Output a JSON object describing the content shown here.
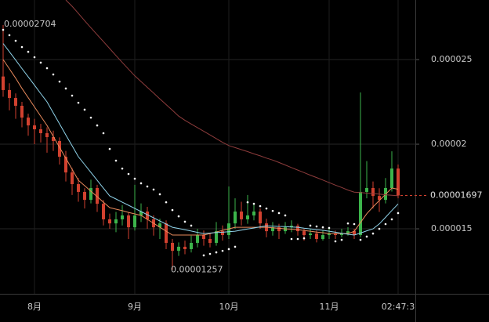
{
  "chart_data": {
    "type": "candlestick",
    "categories": [
      null,
      null,
      null,
      null,
      null,
      "8月",
      null,
      null,
      null,
      null,
      null,
      null,
      null,
      null,
      null,
      null,
      null,
      null,
      null,
      null,
      null,
      "9月",
      null,
      null,
      null,
      null,
      null,
      null,
      null,
      null,
      null,
      null,
      null,
      null,
      null,
      null,
      "10月",
      null,
      null,
      null,
      null,
      null,
      null,
      null,
      null,
      null,
      null,
      null,
      null,
      null,
      null,
      null,
      "11月",
      null,
      null,
      null,
      null,
      null,
      null,
      null,
      null,
      null,
      null,
      "02:47:3"
    ],
    "open": [
      2.4e-05,
      2.32e-05,
      2.273e-05,
      2.227e-05,
      2.157e-05,
      2.111e-05,
      2.088e-05,
      2.065e-05,
      2.042e-05,
      2.019e-05,
      1.926e-05,
      1.833e-05,
      1.764e-05,
      1.718e-05,
      1.671e-05,
      1.741e-05,
      1.648e-05,
      1.556e-05,
      1.532e-05,
      1.556e-05,
      1.579e-05,
      1.509e-05,
      1.579e-05,
      1.602e-05,
      1.556e-05,
      1.509e-05,
      1.532e-05,
      1.417e-05,
      1.37e-05,
      1.394e-05,
      1.38e-05,
      1.417e-05,
      1.463e-05,
      1.44e-05,
      1.417e-05,
      1.486e-05,
      1.463e-05,
      1.532e-05,
      1.602e-05,
      1.556e-05,
      1.579e-05,
      1.602e-05,
      1.532e-05,
      1.486e-05,
      1.509e-05,
      1.486e-05,
      1.509e-05,
      1.518e-05,
      1.486e-05,
      1.463e-05,
      1.472e-05,
      1.44e-05,
      1.463e-05,
      1.472e-05,
      1.463e-05,
      1.472e-05,
      1.486e-05,
      1.463e-05,
      1.718e-05,
      1.741e-05,
      1.694e-05,
      1.671e-05,
      1.741e-05,
      1.856e-05
    ],
    "high": [
      2.704e-05,
      2.36e-05,
      2.3e-05,
      2.25e-05,
      2.18e-05,
      2.15e-05,
      2.12e-05,
      2.1e-05,
      2.08e-05,
      2.04e-05,
      1.96e-05,
      1.86e-05,
      1.8e-05,
      1.74e-05,
      1.79e-05,
      1.76e-05,
      1.67e-05,
      1.59e-05,
      1.6e-05,
      1.64e-05,
      1.6e-05,
      1.76e-05,
      1.65e-05,
      1.63e-05,
      1.58e-05,
      1.56e-05,
      1.55e-05,
      1.44e-05,
      1.42e-05,
      1.43e-05,
      1.46e-05,
      1.5e-05,
      1.49e-05,
      1.47e-05,
      1.54e-05,
      1.52e-05,
      1.75e-05,
      1.68e-05,
      1.66e-05,
      1.7e-05,
      1.65e-05,
      1.62e-05,
      1.56e-05,
      1.54e-05,
      1.53e-05,
      1.54e-05,
      1.55e-05,
      1.53e-05,
      1.5e-05,
      1.5e-05,
      1.49e-05,
      1.49e-05,
      1.5e-05,
      1.49e-05,
      1.5e-05,
      1.51e-05,
      1.5e-05,
      2.306e-05,
      1.9e-05,
      1.78e-05,
      1.74e-05,
      1.8e-05,
      1.958e-05,
      1.88e-05
    ],
    "low": [
      2.28e-05,
      2.2e-05,
      2.15e-05,
      2.1e-05,
      2.05e-05,
      2e-05,
      2.01e-05,
      1.95e-05,
      1.96e-05,
      1.88e-05,
      1.78e-05,
      1.7e-05,
      1.66e-05,
      1.62e-05,
      1.65e-05,
      1.6e-05,
      1.52e-05,
      1.5e-05,
      1.48e-05,
      1.52e-05,
      1.44e-05,
      1.49e-05,
      1.54e-05,
      1.5e-05,
      1.46e-05,
      1.44e-05,
      1.38e-05,
      1.257e-05,
      1.34e-05,
      1.35e-05,
      1.36e-05,
      1.39e-05,
      1.4e-05,
      1.39e-05,
      1.4e-05,
      1.43e-05,
      1.44e-05,
      1.5e-05,
      1.52e-05,
      1.53e-05,
      1.55e-05,
      1.5e-05,
      1.45e-05,
      1.46e-05,
      1.44e-05,
      1.47e-05,
      1.48e-05,
      1.46e-05,
      1.43e-05,
      1.44e-05,
      1.42e-05,
      1.43e-05,
      1.44e-05,
      1.44e-05,
      1.45e-05,
      1.46e-05,
      1.44e-05,
      1.45e-05,
      1.68e-05,
      1.62e-05,
      1.6e-05,
      1.65e-05,
      1.72e-05,
      1.68e-05
    ],
    "close": [
      2.32e-05,
      2.273e-05,
      2.227e-05,
      2.157e-05,
      2.111e-05,
      2.088e-05,
      2.065e-05,
      2.042e-05,
      2.019e-05,
      1.926e-05,
      1.833e-05,
      1.764e-05,
      1.718e-05,
      1.671e-05,
      1.741e-05,
      1.648e-05,
      1.556e-05,
      1.532e-05,
      1.556e-05,
      1.579e-05,
      1.509e-05,
      1.579e-05,
      1.602e-05,
      1.556e-05,
      1.509e-05,
      1.532e-05,
      1.417e-05,
      1.37e-05,
      1.394e-05,
      1.38e-05,
      1.417e-05,
      1.463e-05,
      1.44e-05,
      1.417e-05,
      1.486e-05,
      1.463e-05,
      1.532e-05,
      1.602e-05,
      1.556e-05,
      1.579e-05,
      1.602e-05,
      1.532e-05,
      1.486e-05,
      1.509e-05,
      1.486e-05,
      1.509e-05,
      1.518e-05,
      1.486e-05,
      1.463e-05,
      1.472e-05,
      1.44e-05,
      1.463e-05,
      1.472e-05,
      1.463e-05,
      1.472e-05,
      1.486e-05,
      1.463e-05,
      1.718e-05,
      1.741e-05,
      1.694e-05,
      1.671e-05,
      1.741e-05,
      1.856e-05,
      1.697e-05
    ],
    "up_color": "#3cb44b",
    "down_color": "#d2412f",
    "lines": [
      {
        "style": "line",
        "color": "#e98a5c",
        "values": [
          2.5e-05,
          2.445e-05,
          2.39e-05,
          2.33e-05,
          2.275e-05,
          2.22e-05,
          2.165e-05,
          2.111e-05,
          2.046e-05,
          1.981e-05,
          1.917e-05,
          1.852e-05,
          1.787e-05,
          1.755e-05,
          1.722e-05,
          1.69e-05,
          1.657e-05,
          1.625e-05,
          1.616e-05,
          1.607e-05,
          1.597e-05,
          1.588e-05,
          1.579e-05,
          1.556e-05,
          1.533e-05,
          1.509e-05,
          1.486e-05,
          1.463e-05,
          1.463e-05,
          1.463e-05,
          1.463e-05,
          1.463e-05,
          1.463e-05,
          1.472e-05,
          1.481e-05,
          1.491e-05,
          1.5e-05,
          1.509e-05,
          1.509e-05,
          1.509e-05,
          1.509e-05,
          1.509e-05,
          1.509e-05,
          1.506e-05,
          1.503e-05,
          1.5e-05,
          1.498e-05,
          1.495e-05,
          1.49e-05,
          1.486e-05,
          1.481e-05,
          1.477e-05,
          1.472e-05,
          1.472e-05,
          1.472e-05,
          1.472e-05,
          1.485e-05,
          1.537e-05,
          1.589e-05,
          1.63e-05,
          1.667e-05,
          1.704e-05,
          1.741e-05,
          1.734e-05
        ]
      },
      {
        "style": "line",
        "color": "#8fd3ea",
        "values": [
          2.595e-05,
          2.546e-05,
          2.497e-05,
          2.447e-05,
          2.398e-05,
          2.349e-05,
          2.299e-05,
          2.25e-05,
          2.185e-05,
          2.12e-05,
          2.055e-05,
          1.991e-05,
          1.926e-05,
          1.88e-05,
          1.833e-05,
          1.787e-05,
          1.74e-05,
          1.694e-05,
          1.676e-05,
          1.657e-05,
          1.639e-05,
          1.62e-05,
          1.602e-05,
          1.583e-05,
          1.565e-05,
          1.546e-05,
          1.528e-05,
          1.509e-05,
          1.502e-05,
          1.494e-05,
          1.487e-05,
          1.479e-05,
          1.472e-05,
          1.475e-05,
          1.478e-05,
          1.48e-05,
          1.483e-05,
          1.486e-05,
          1.492e-05,
          1.499e-05,
          1.505e-05,
          1.512e-05,
          1.518e-05,
          1.516e-05,
          1.514e-05,
          1.513e-05,
          1.511e-05,
          1.509e-05,
          1.504e-05,
          1.5e-05,
          1.495e-05,
          1.491e-05,
          1.486e-05,
          1.48e-05,
          1.474e-05,
          1.468e-05,
          1.463e-05,
          1.475e-05,
          1.488e-05,
          1.5e-05,
          1.529e-05,
          1.568e-05,
          1.608e-05,
          1.647e-05
        ]
      },
      {
        "style": "line",
        "color": "#8e3c3c",
        "values": [
          null,
          null,
          null,
          null,
          null,
          null,
          null,
          null,
          null,
          null,
          2.852e-05,
          2.815e-05,
          2.773e-05,
          2.73e-05,
          2.688e-05,
          2.647e-05,
          2.606e-05,
          2.565e-05,
          2.524e-05,
          2.483e-05,
          2.443e-05,
          2.404e-05,
          2.37e-05,
          2.336e-05,
          2.302e-05,
          2.268e-05,
          2.234e-05,
          2.2e-05,
          2.166e-05,
          2.141e-05,
          2.119e-05,
          2.098e-05,
          2.076e-05,
          2.055e-05,
          2.033e-05,
          2.011e-05,
          1.992e-05,
          1.98e-05,
          1.968e-05,
          1.956e-05,
          1.943e-05,
          1.931e-05,
          1.918e-05,
          1.906e-05,
          1.892e-05,
          1.877e-05,
          1.862e-05,
          1.847e-05,
          1.832e-05,
          1.817e-05,
          1.803e-05,
          1.788e-05,
          1.773e-05,
          1.758e-05,
          1.744e-05,
          1.729e-05,
          1.717e-05,
          1.714e-05,
          1.711e-05,
          1.708e-05,
          1.705e-05,
          1.701e-05,
          1.698e-05,
          1.695e-05
        ]
      },
      {
        "style": "dots",
        "color": "#ffffff",
        "values": [
          2.676e-05,
          2.644e-05,
          2.611e-05,
          2.574e-05,
          2.546e-05,
          2.514e-05,
          2.482e-05,
          2.449e-05,
          2.412e-05,
          2.37e-05,
          2.329e-05,
          2.287e-05,
          2.245e-05,
          2.204e-05,
          2.157e-05,
          2.111e-05,
          2.065e-05,
          1.972e-05,
          1.903e-05,
          1.856e-05,
          1.824e-05,
          1.796e-05,
          1.769e-05,
          1.75e-05,
          1.732e-05,
          1.704e-05,
          1.657e-05,
          1.611e-05,
          1.574e-05,
          1.542e-05,
          1.519e-05,
          null,
          1.343e-05,
          1.352e-05,
          1.361e-05,
          1.37e-05,
          1.38e-05,
          1.394e-05,
          null,
          1.657e-05,
          1.648e-05,
          1.634e-05,
          1.62e-05,
          1.606e-05,
          1.593e-05,
          1.579e-05,
          1.44e-05,
          1.44e-05,
          1.444e-05,
          1.519e-05,
          1.514e-05,
          1.509e-05,
          1.505e-05,
          1.426e-05,
          1.435e-05,
          1.532e-05,
          1.528e-05,
          1.435e-05,
          1.454e-05,
          1.472e-05,
          1.5e-05,
          1.528e-05,
          1.556e-05,
          1.593e-05
        ]
      }
    ],
    "ylim": [
      1.116e-05,
      2.852e-05
    ],
    "yticks": [
      1.5e-05,
      2e-05,
      2.5e-05
    ],
    "grid": true,
    "price_line_color": "#d2412f"
  }
}
